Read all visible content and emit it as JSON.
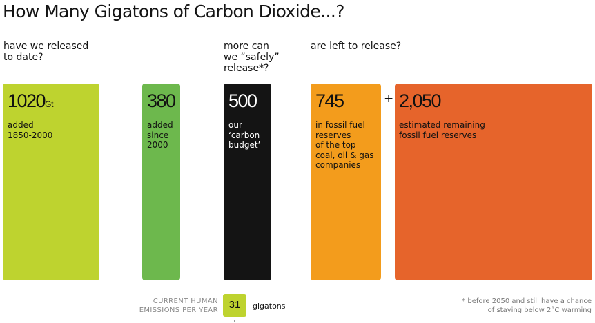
{
  "title": "How Many Gigatons of Carbon Dioxide...?",
  "questions": {
    "released": [
      "have we released",
      "to date?"
    ],
    "safe": [
      "more can",
      "we “safely”",
      "release*?"
    ],
    "left": [
      "are left to release?"
    ]
  },
  "chart_data": {
    "type": "bar",
    "title": "How Many Gigatons of Carbon Dioxide...?",
    "unit": "Gt",
    "categories": [
      "added 1850-2000",
      "added since 2000",
      "our 'carbon budget'",
      "in fossil fuel reserves of the top coal, oil & gas companies",
      "estimated remaining fossil fuel reserves"
    ],
    "values": [
      1020,
      380,
      500,
      745,
      2050
    ],
    "grid": false,
    "bars": [
      {
        "value_label": "1020",
        "unit": "Gt",
        "lines": [
          "added",
          "1850-2000"
        ],
        "color": "#bed32f"
      },
      {
        "value_label": "380",
        "unit": "",
        "lines": [
          "added",
          "since",
          "2000"
        ],
        "color": "#6db84d"
      },
      {
        "value_label": "500",
        "unit": "",
        "lines": [
          "our",
          "‘carbon",
          "budget’"
        ],
        "color": "#141414"
      },
      {
        "value_label": "745",
        "unit": "",
        "lines": [
          "in fossil fuel",
          "reserves",
          "of the top",
          "coal, oil & gas",
          "companies"
        ],
        "color": "#f39c1c"
      },
      {
        "value_label": "2,050",
        "unit": "",
        "lines": [
          "estimated remaining",
          "fossil fuel reserves"
        ],
        "color": "#e6642b"
      }
    ],
    "plus": "+"
  },
  "current": {
    "label": [
      "CURRENT HUMAN",
      "EMISSIONS PER YEAR"
    ],
    "value": "31",
    "unit": "gigatons",
    "color": "#bed32f"
  },
  "footnote": [
    "* before 2050 and still have a chance",
    "of staying below 2°C warming"
  ]
}
